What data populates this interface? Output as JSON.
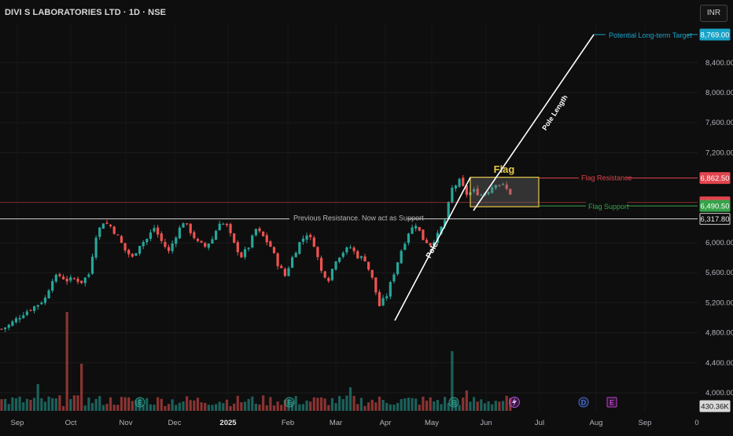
{
  "header": {
    "title": "DIVI S LABORATORIES LTD · 1D · NSE",
    "currency": "INR"
  },
  "chart_data": {
    "type": "candlestick",
    "x_tick_labels": [
      "Sep",
      "Oct",
      "Nov",
      "Dec",
      "2025",
      "Feb",
      "Mar",
      "Apr",
      "May",
      "Jun",
      "Jul",
      "Aug",
      "Sep",
      "0"
    ],
    "y_tick_labels": [
      "8,400.00",
      "8,000.00",
      "7,600.00",
      "7,200.00",
      "6,000.00",
      "5,600.00",
      "5,200.00",
      "4,800.00",
      "4,400.00",
      "4,000.00"
    ],
    "ylim": [
      3960,
      8960
    ],
    "price_path": [
      [
        0,
        4850
      ],
      [
        2,
        4900
      ],
      [
        4,
        4980
      ],
      [
        6,
        5060
      ],
      [
        8,
        5120
      ],
      [
        10,
        5180
      ],
      [
        12,
        5260
      ],
      [
        14,
        5520
      ],
      [
        16,
        5560
      ],
      [
        18,
        5500
      ],
      [
        20,
        5520
      ],
      [
        22,
        5480
      ],
      [
        24,
        5580
      ],
      [
        26,
        6100
      ],
      [
        28,
        6280
      ],
      [
        30,
        6220
      ],
      [
        32,
        6080
      ],
      [
        34,
        5900
      ],
      [
        36,
        5800
      ],
      [
        38,
        5980
      ],
      [
        40,
        6050
      ],
      [
        42,
        6200
      ],
      [
        44,
        6020
      ],
      [
        46,
        5880
      ],
      [
        48,
        6100
      ],
      [
        50,
        6280
      ],
      [
        52,
        6150
      ],
      [
        54,
        6000
      ],
      [
        56,
        5950
      ],
      [
        58,
        6050
      ],
      [
        60,
        6280
      ],
      [
        62,
        6220
      ],
      [
        64,
        5980
      ],
      [
        66,
        5820
      ],
      [
        68,
        5950
      ],
      [
        70,
        6180
      ],
      [
        72,
        6080
      ],
      [
        74,
        5950
      ],
      [
        76,
        5720
      ],
      [
        78,
        5560
      ],
      [
        80,
        5800
      ],
      [
        82,
        6000
      ],
      [
        84,
        6120
      ],
      [
        86,
        5980
      ],
      [
        88,
        5620
      ],
      [
        90,
        5520
      ],
      [
        92,
        5780
      ],
      [
        94,
        5880
      ],
      [
        96,
        5940
      ],
      [
        98,
        5820
      ],
      [
        100,
        5780
      ],
      [
        102,
        5520
      ],
      [
        104,
        5160
      ],
      [
        106,
        5300
      ],
      [
        108,
        5600
      ],
      [
        110,
        5900
      ],
      [
        112,
        6140
      ],
      [
        114,
        6250
      ],
      [
        116,
        6050
      ],
      [
        118,
        5980
      ],
      [
        120,
        6100
      ],
      [
        122,
        6300
      ],
      [
        124,
        6720
      ],
      [
        126,
        6820
      ],
      [
        128,
        6650
      ],
      [
        130,
        6690
      ],
      [
        132,
        6640
      ],
      [
        134,
        6700
      ],
      [
        136,
        6800
      ],
      [
        138,
        6760
      ],
      [
        140,
        6660
      ]
    ],
    "levels": [
      {
        "label": "Previous Resistance. Now act as Support",
        "price": 6317.8,
        "price_label": "6,317.80",
        "color": "#d6d6d6"
      },
      {
        "label": "Flag Resistance",
        "price": 6862.5,
        "price_label": "6,862.50",
        "color": "#e0454e"
      },
      {
        "label": "Flag Support",
        "price": 6490.5,
        "price_label": "6,490.50",
        "color": "#36a24a"
      },
      {
        "label": "",
        "price": 6538.0,
        "price_label": "6,538.00",
        "color": "#e0454e"
      }
    ],
    "annotations": {
      "flag_label": "Flag",
      "pole_label": "Pole",
      "pole_length_label": "Pole Length",
      "target_label": "Potential Long-term Target",
      "target_price_label": "8,769.00",
      "volume_label": "430.36K"
    },
    "event_markers": [
      "E",
      "E",
      "E",
      "D",
      "E"
    ],
    "colors": {
      "up": "#26a69a",
      "down": "#ef5350",
      "target": "#1aa3c8",
      "flag_box": "#e7c94a",
      "background": "#0e0e0e"
    }
  }
}
